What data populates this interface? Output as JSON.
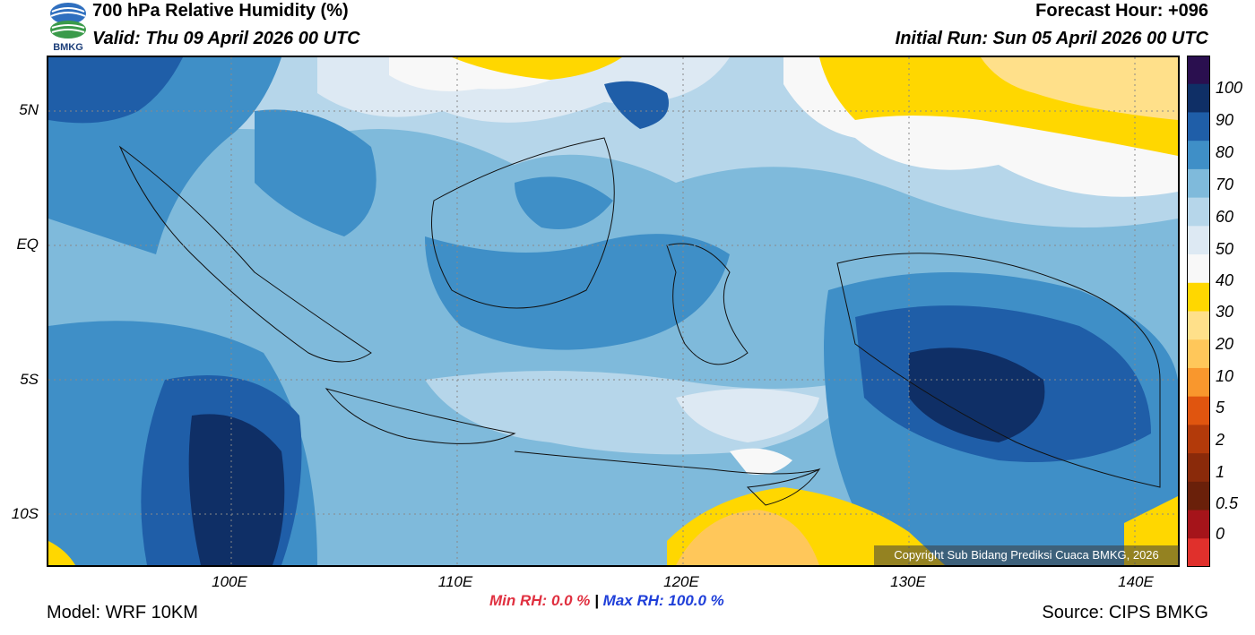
{
  "header": {
    "title": "700 hPa Relative Humidity (%)",
    "valid": "Valid: Thu 09 April 2026 00 UTC",
    "forecast_hour": "Forecast Hour: +096",
    "initial_run": "Initial Run: Sun 05 April 2026 00 UTC",
    "logo_text": "BMKG"
  },
  "axes": {
    "lat_labels": [
      "5N",
      "EQ",
      "5S",
      "10S"
    ],
    "lon_labels": [
      "100E",
      "110E",
      "120E",
      "130E",
      "140E"
    ]
  },
  "colorbar": {
    "labels": [
      "100",
      "90",
      "80",
      "70",
      "60",
      "50",
      "40",
      "30",
      "20",
      "10",
      "5",
      "2",
      "1",
      "0.5",
      "0"
    ],
    "colors": [
      "#2a0f4f",
      "#0f2f66",
      "#1f5ea8",
      "#3f8fc7",
      "#7fbadb",
      "#b6d6ea",
      "#dde9f3",
      "#f8f8f8",
      "#ffd700",
      "#ffe08a",
      "#ffc75a",
      "#f9972d",
      "#e0550f",
      "#b33a0a",
      "#8a2a0a",
      "#6a200a",
      "#a5141a",
      "#e0302c"
    ]
  },
  "copyright": "Copyright Sub Bidang Prediksi Cuaca BMKG, 2026",
  "stats": {
    "min_label": "Min RH:",
    "min_value": "0.0 %",
    "separator": "|",
    "max_label": "Max RH:",
    "max_value": "100.0 %"
  },
  "footer": {
    "model": "Model: WRF 10KM",
    "source": "Source: CIPS BMKG"
  }
}
